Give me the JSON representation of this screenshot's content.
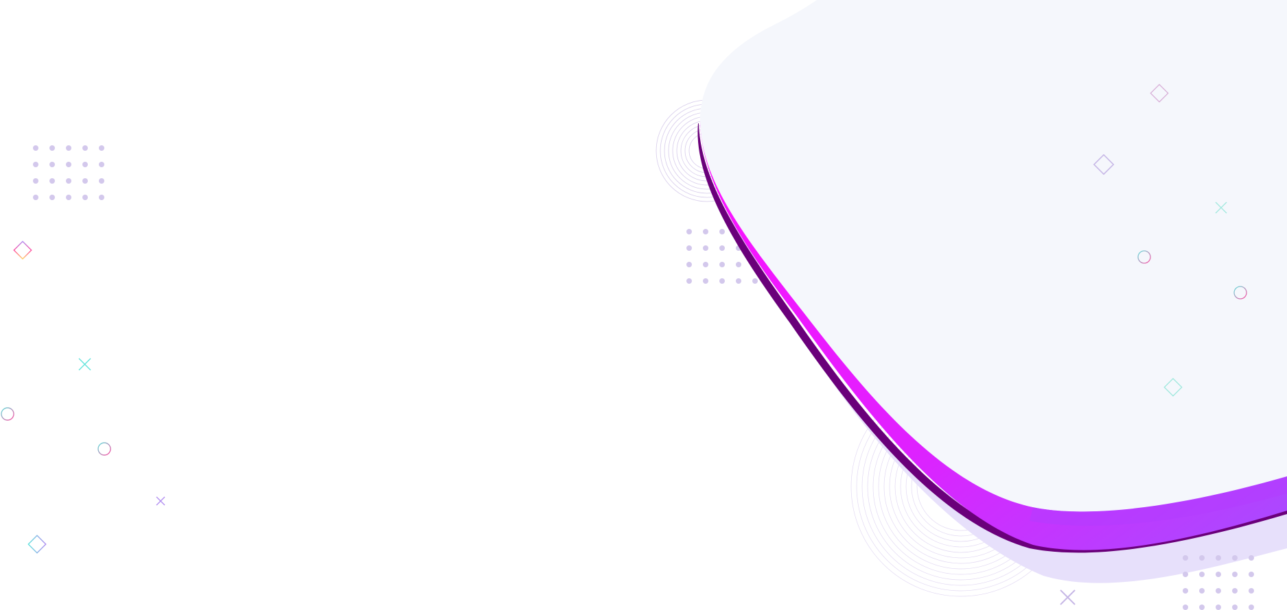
{
  "colors": {
    "background": "#ffffff",
    "blob_fill": "#f5f7fc",
    "ribbon_top": "#ff10ff",
    "ribbon_bottom": "#a64cff",
    "ribbon_dark": "#6a007a",
    "shadow": "#e7e0fb",
    "dots": "#d3c8ec",
    "ring_lines": "#d6cbea",
    "icon_pink": "#ff4fa3",
    "icon_cyan": "#62e3dc",
    "icon_purple": "#b08cf0",
    "icon_yellow": "#ffd166"
  },
  "decorations": {
    "dot_grids": [
      {
        "name": "dot-grid-top-left",
        "rows": 4,
        "cols": 5
      },
      {
        "name": "dot-grid-center",
        "rows": 4,
        "cols": 5
      },
      {
        "name": "dot-grid-bottom-right",
        "rows": 4,
        "cols": 5
      }
    ],
    "icons": [
      "diamond-outline-icon",
      "cross-icon",
      "circle-outline-icon"
    ]
  }
}
